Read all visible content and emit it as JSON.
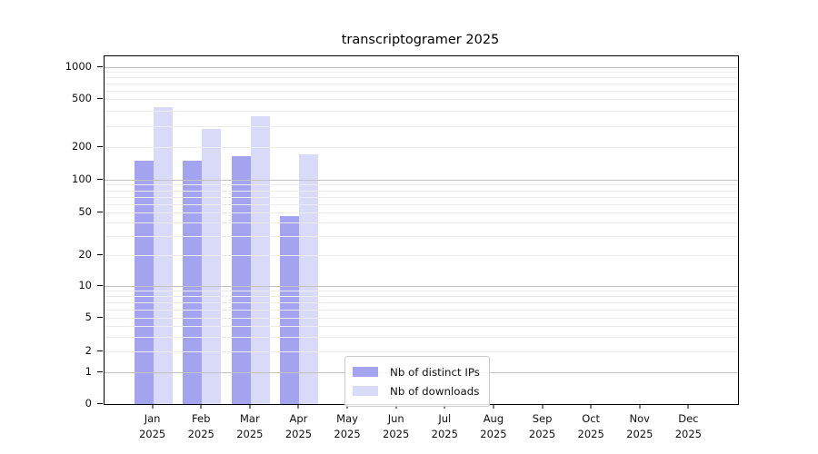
{
  "chart_data": {
    "type": "bar",
    "title": "transcriptogramer 2025",
    "categories": [
      {
        "month": "Jan",
        "year": "2025"
      },
      {
        "month": "Feb",
        "year": "2025"
      },
      {
        "month": "Mar",
        "year": "2025"
      },
      {
        "month": "Apr",
        "year": "2025"
      },
      {
        "month": "May",
        "year": "2025"
      },
      {
        "month": "Jun",
        "year": "2025"
      },
      {
        "month": "Jul",
        "year": "2025"
      },
      {
        "month": "Aug",
        "year": "2025"
      },
      {
        "month": "Sep",
        "year": "2025"
      },
      {
        "month": "Oct",
        "year": "2025"
      },
      {
        "month": "Nov",
        "year": "2025"
      },
      {
        "month": "Dec",
        "year": "2025"
      }
    ],
    "series": [
      {
        "name": "Nb of distinct IPs",
        "color": "#a3a3ef",
        "values": [
          150,
          150,
          165,
          46,
          0,
          0,
          0,
          0,
          0,
          0,
          0,
          0
        ]
      },
      {
        "name": "Nb of downloads",
        "color": "#d9d9f8",
        "values": [
          430,
          285,
          360,
          172,
          0,
          0,
          0,
          0,
          0,
          0,
          0,
          0
        ]
      }
    ],
    "y_axis": {
      "scale": "log-like",
      "ticks": [
        0,
        1,
        2,
        5,
        10,
        20,
        50,
        100,
        200,
        500,
        1000
      ],
      "ylim": [
        0,
        1200
      ]
    },
    "xlabel": "",
    "ylabel": "",
    "grid": true,
    "legend_position": "lower-center"
  },
  "colors": {
    "major_grid": "#c3c3c3",
    "minor_grid": "#ececec",
    "spine": "#000000",
    "text": "#111111"
  }
}
